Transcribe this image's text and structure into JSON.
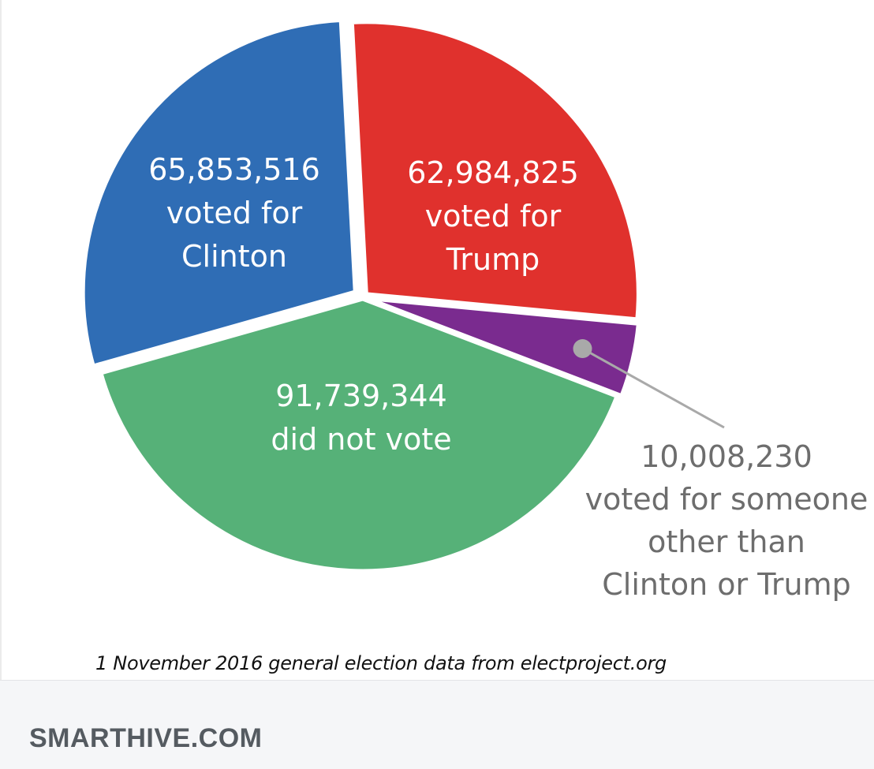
{
  "chart_data": {
    "type": "pie",
    "slices": [
      {
        "label_lines": [
          "62,984,825",
          "voted for",
          "Trump"
        ],
        "value": 62984825,
        "color": "#e0312d"
      },
      {
        "label_lines": [
          "10,008,230",
          "voted for someone",
          "other than",
          "Clinton or Trump"
        ],
        "value": 10008230,
        "color": "#7a2b8f"
      },
      {
        "label_lines": [
          "91,739,344",
          "did not vote"
        ],
        "value": 91739344,
        "color": "#56b178"
      },
      {
        "label_lines": [
          "65,853,516",
          "voted for",
          "Clinton"
        ],
        "value": 65853516,
        "color": "#2f6db5"
      }
    ],
    "footnote": "1 November 2016 general election data from electproject.org"
  },
  "footer": {
    "domain": "SMARTHIVE.COM"
  },
  "colors": {
    "callout_line": "#a9a9a9",
    "callout_text": "#6d6d6d",
    "footer_bg": "#f5f6f8"
  }
}
